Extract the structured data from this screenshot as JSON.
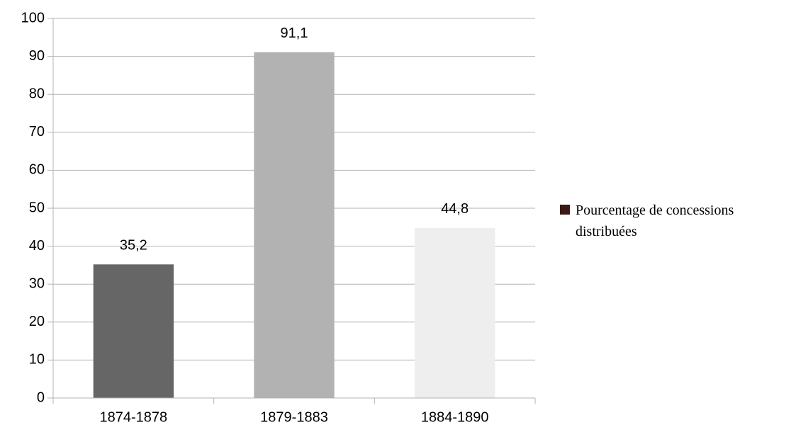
{
  "chart_data": {
    "type": "bar",
    "categories": [
      "1874-1878",
      "1879-1883",
      "1884-1890"
    ],
    "series": [
      {
        "name": "Pourcentage de concessions distribuées",
        "color": "#3c1a14",
        "colors": [
          "#666666",
          "#b2b2b2",
          "#eeeeee"
        ],
        "values": [
          35.2,
          91.1,
          44.8
        ],
        "value_labels": [
          "35,2",
          "91,1",
          "44,8"
        ]
      }
    ],
    "ylim": [
      0,
      100
    ],
    "yticks": [
      0,
      10,
      20,
      30,
      40,
      50,
      60,
      70,
      80,
      90,
      100
    ],
    "grid": true,
    "legend": "right"
  }
}
